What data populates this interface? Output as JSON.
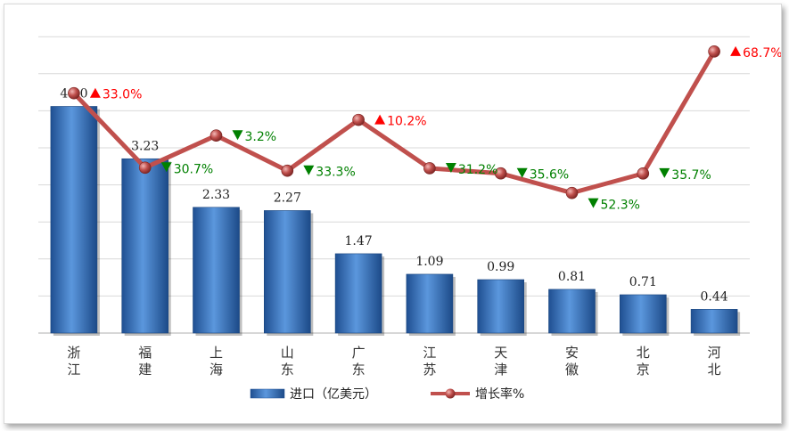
{
  "chart_data": {
    "type": "bar+line",
    "categories": [
      "浙江",
      "福建",
      "上海",
      "山东",
      "广东",
      "江苏",
      "天津",
      "安徽",
      "北京",
      "河北"
    ],
    "category_lines": [
      [
        "浙",
        "江"
      ],
      [
        "福",
        "建"
      ],
      [
        "上",
        "海"
      ],
      [
        "山",
        "东"
      ],
      [
        "广",
        "东"
      ],
      [
        "江",
        "苏"
      ],
      [
        "天",
        "津"
      ],
      [
        "安",
        "徽"
      ],
      [
        "北",
        "京"
      ],
      [
        "河",
        "北"
      ]
    ],
    "series": [
      {
        "name": "进口（亿美元）",
        "type": "bar",
        "color": "#3a78c3",
        "values": [
          4.2,
          3.23,
          2.33,
          2.27,
          1.47,
          1.09,
          0.99,
          0.81,
          0.71,
          0.44
        ],
        "labels": [
          "4.20",
          "3.23",
          "2.33",
          "2.27",
          "1.47",
          "1.09",
          "0.99",
          "0.81",
          "0.71",
          "0.44"
        ]
      },
      {
        "name": "增长率%",
        "type": "line",
        "color": "#c0504d",
        "values": [
          33.0,
          -30.7,
          -3.2,
          -33.3,
          10.2,
          -31.2,
          -35.6,
          -52.3,
          -35.7,
          68.7
        ],
        "labels": [
          "33.0%",
          "30.7%",
          "3.2%",
          "33.3%",
          "10.2%",
          "31.2%",
          "35.6%",
          "52.3%",
          "35.7%",
          "68.7%"
        ],
        "direction": [
          "up",
          "down",
          "down",
          "down",
          "up",
          "down",
          "down",
          "down",
          "down",
          "up"
        ]
      }
    ],
    "up_color": "#ff0000",
    "down_color": "#008000",
    "grid": true,
    "legend_position": "bottom"
  }
}
